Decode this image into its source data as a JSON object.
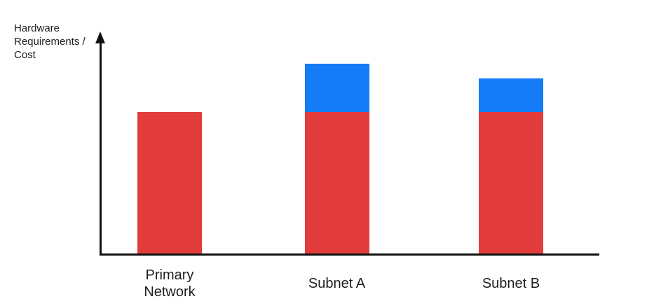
{
  "chart": {
    "ylabel_display": "Hardware\nRequirements /\nCost"
  },
  "chart_data": {
    "type": "bar",
    "stacked": true,
    "title": "",
    "xlabel": "",
    "ylabel": "Hardware Requirements / Cost",
    "categories": [
      "Primary Network",
      "Subnet A",
      "Subnet B"
    ],
    "category_display": [
      "Primary\nNetwork",
      "Subnet A",
      "Subnet B"
    ],
    "series": [
      {
        "name": "red",
        "color": "#E23C3C",
        "values": [
          1.0,
          1.0,
          1.0
        ]
      },
      {
        "name": "blue",
        "color": "#137CF6",
        "values": [
          0,
          0.34,
          0.24
        ]
      }
    ],
    "units": "relative (no numeric scale shown)",
    "axis": {
      "ticks": false,
      "gridlines": false,
      "y_arrow": true,
      "color": "#111111"
    },
    "legend": "none",
    "text_color": "#1e1e1e"
  }
}
